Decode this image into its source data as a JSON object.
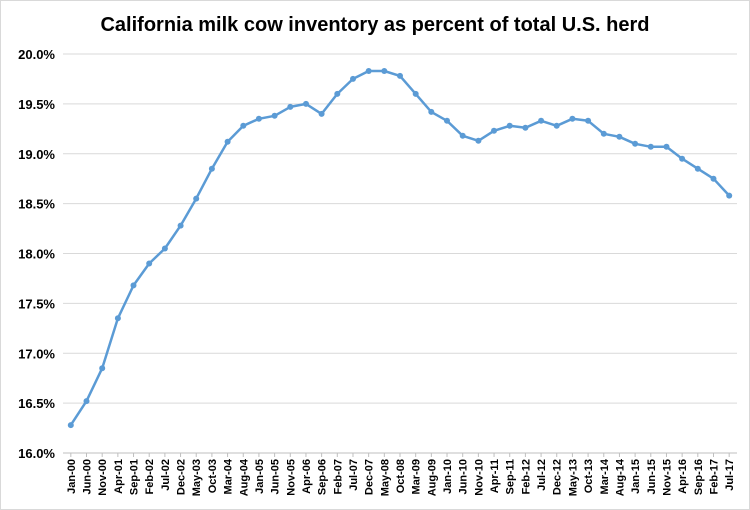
{
  "chart_data": {
    "type": "line",
    "title": "California milk cow inventory as percent of total U.S. herd",
    "xlabel": "",
    "ylabel": "",
    "ylim": [
      16.0,
      20.0
    ],
    "yticks": [
      "16.0%",
      "16.5%",
      "17.0%",
      "17.5%",
      "18.0%",
      "18.5%",
      "19.0%",
      "19.5%",
      "20.0%"
    ],
    "x_tick_labels": [
      "Jan-00",
      "Jun-00",
      "Nov-00",
      "Apr-01",
      "Sep-01",
      "Feb-02",
      "Jul-02",
      "Dec-02",
      "May-03",
      "Oct-03",
      "Mar-04",
      "Aug-04",
      "Jan-05",
      "Jun-05",
      "Nov-05",
      "Apr-06",
      "Sep-06",
      "Feb-07",
      "Jul-07",
      "Dec-07",
      "May-08",
      "Oct-08",
      "Mar-09",
      "Aug-09",
      "Jan-10",
      "Jun-10",
      "Nov-10",
      "Apr-11",
      "Sep-11",
      "Feb-12",
      "Jul-12",
      "Dec-12",
      "May-13",
      "Oct-13",
      "Mar-14",
      "Aug-14",
      "Jan-15",
      "Jun-15",
      "Nov-15",
      "Apr-16",
      "Sep-16",
      "Feb-17",
      "Jul-17"
    ],
    "series_color": "#5b9bd5",
    "grid": true,
    "series": [
      {
        "name": "",
        "x": [
          "Jan-00",
          "Jun-00",
          "Nov-00",
          "Apr-01",
          "Sep-01",
          "Feb-02",
          "Jul-02",
          "Dec-02",
          "May-03",
          "Oct-03",
          "Mar-04",
          "Aug-04",
          "Jan-05",
          "Jun-05",
          "Nov-05",
          "Apr-06",
          "Sep-06",
          "Feb-07",
          "Jul-07",
          "Dec-07",
          "May-08",
          "Oct-08",
          "Mar-09",
          "Aug-09",
          "Jan-10",
          "Jun-10",
          "Nov-10",
          "Apr-11",
          "Sep-11",
          "Feb-12",
          "Jul-12",
          "Dec-12",
          "May-13",
          "Oct-13",
          "Mar-14",
          "Aug-14",
          "Jan-15",
          "Jun-15",
          "Nov-15",
          "Apr-16",
          "Sep-16",
          "Feb-17",
          "Jul-17"
        ],
        "values": [
          16.28,
          16.52,
          16.85,
          17.35,
          17.68,
          17.9,
          18.05,
          18.28,
          18.55,
          18.85,
          19.12,
          19.28,
          19.35,
          19.38,
          19.47,
          19.5,
          19.4,
          19.6,
          19.75,
          19.83,
          19.83,
          19.78,
          19.6,
          19.42,
          19.33,
          19.18,
          19.13,
          19.23,
          19.28,
          19.26,
          19.33,
          19.28,
          19.35,
          19.33,
          19.2,
          19.17,
          19.1,
          19.07,
          19.07,
          18.95,
          18.85,
          18.75,
          18.58
        ]
      }
    ]
  }
}
